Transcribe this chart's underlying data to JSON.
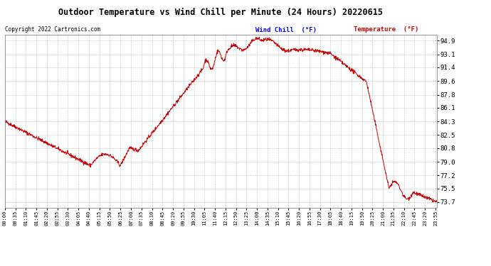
{
  "title": "Outdoor Temperature vs Wind Chill per Minute (24 Hours) 20220615",
  "copyright": "Copyright 2022 Cartronics.com",
  "legend_wind_chill": "Wind Chill  (°F)",
  "legend_temperature": "Temperature  (°F)",
  "line_color": "#cc0000",
  "legend_wind_color": "#0000ff",
  "legend_temp_color": "#cc0000",
  "background_color": "#ffffff",
  "grid_color": "#bbbbbb",
  "yticks": [
    73.7,
    75.5,
    77.2,
    79.0,
    80.8,
    82.5,
    84.3,
    86.1,
    87.8,
    89.6,
    91.4,
    93.1,
    94.9
  ],
  "ymin": 73.0,
  "ymax": 95.7,
  "num_points": 1440
}
